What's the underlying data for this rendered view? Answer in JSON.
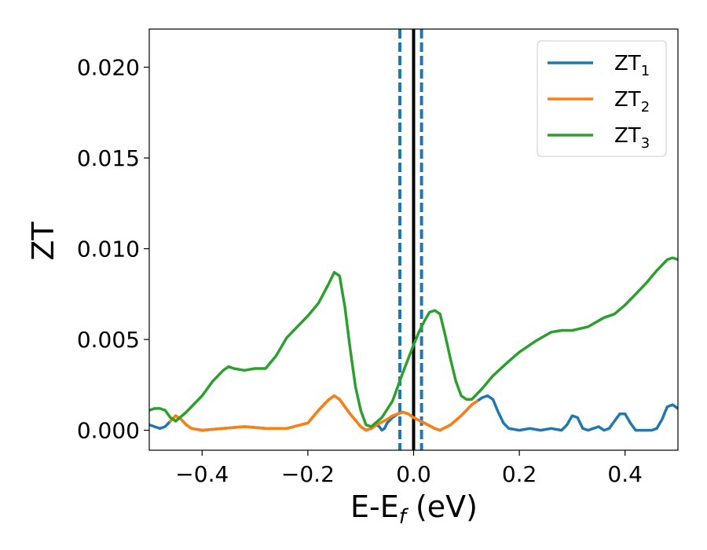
{
  "chart_data": {
    "type": "line",
    "xlabel": {
      "main": "E-E",
      "sub": "f",
      "suffix": " (eV)"
    },
    "ylabel": "ZT",
    "xlim": [
      -0.5,
      0.5
    ],
    "ylim": [
      -0.0011,
      0.0221
    ],
    "x_ticks": [
      -0.4,
      -0.2,
      0.0,
      0.2,
      0.4
    ],
    "x_tick_labels": [
      "−0.4",
      "−0.2",
      "0.0",
      "0.2",
      "0.4"
    ],
    "y_ticks": [
      0.0,
      0.005,
      0.01,
      0.015,
      0.02
    ],
    "y_tick_labels": [
      "0.000",
      "0.005",
      "0.010",
      "0.015",
      "0.020"
    ],
    "grid": false,
    "legend_position": "top-right",
    "vertical_lines": [
      {
        "x": -0.026,
        "style": "dashed",
        "color": "#1f77b4"
      },
      {
        "x": 0.0,
        "style": "solid",
        "color": "#000000"
      },
      {
        "x": 0.015,
        "style": "dashed",
        "color": "#1f77b4"
      }
    ],
    "series": [
      {
        "name": "ZT",
        "sub": "1",
        "color": "#1f77b4",
        "points": [
          [
            -0.5,
            0.0003
          ],
          [
            -0.49,
            0.0002
          ],
          [
            -0.48,
            0.0001
          ],
          [
            -0.47,
            0.0002
          ],
          [
            -0.46,
            0.0005
          ],
          [
            -0.45,
            0.0008
          ],
          [
            -0.44,
            0.0006
          ],
          [
            -0.43,
            0.0003
          ],
          [
            -0.42,
            0.0001
          ],
          [
            -0.4,
            0.0
          ],
          [
            -0.36,
            0.0001
          ],
          [
            -0.32,
            0.0002
          ],
          [
            -0.28,
            0.0001
          ],
          [
            -0.24,
            0.0001
          ],
          [
            -0.2,
            0.0004
          ],
          [
            -0.18,
            0.0011
          ],
          [
            -0.16,
            0.0017
          ],
          [
            -0.15,
            0.0019
          ],
          [
            -0.14,
            0.0017
          ],
          [
            -0.12,
            0.0009
          ],
          [
            -0.1,
            0.0002
          ],
          [
            -0.09,
            0.0
          ],
          [
            -0.08,
            0.0001
          ],
          [
            -0.07,
            0.0003
          ],
          [
            -0.065,
            0.0002
          ],
          [
            -0.06,
            0.0
          ],
          [
            -0.055,
            0.0001
          ],
          [
            -0.05,
            0.0004
          ],
          [
            -0.04,
            0.0007
          ],
          [
            -0.03,
            0.0009
          ],
          [
            -0.02,
            0.001
          ],
          [
            -0.01,
            0.0009
          ],
          [
            0.0,
            0.0007
          ],
          [
            0.02,
            0.0004
          ],
          [
            0.04,
            0.0001
          ],
          [
            0.05,
            0.0
          ],
          [
            0.07,
            0.0003
          ],
          [
            0.09,
            0.0008
          ],
          [
            0.11,
            0.0014
          ],
          [
            0.12,
            0.0016
          ],
          [
            0.13,
            0.0018
          ],
          [
            0.14,
            0.0019
          ],
          [
            0.15,
            0.0017
          ],
          [
            0.16,
            0.001
          ],
          [
            0.17,
            0.0004
          ],
          [
            0.18,
            0.0001
          ],
          [
            0.2,
            0.0
          ],
          [
            0.22,
            0.0001
          ],
          [
            0.24,
            0.0
          ],
          [
            0.26,
            0.0001
          ],
          [
            0.28,
            0.0
          ],
          [
            0.29,
            0.0003
          ],
          [
            0.3,
            0.0008
          ],
          [
            0.31,
            0.0007
          ],
          [
            0.32,
            0.0001
          ],
          [
            0.33,
            0.0
          ],
          [
            0.34,
            0.0001
          ],
          [
            0.35,
            0.0002
          ],
          [
            0.36,
            0.0
          ],
          [
            0.37,
            0.0001
          ],
          [
            0.38,
            0.0005
          ],
          [
            0.39,
            0.0009
          ],
          [
            0.4,
            0.0009
          ],
          [
            0.41,
            0.0004
          ],
          [
            0.42,
            0.0
          ],
          [
            0.45,
            0.0
          ],
          [
            0.46,
            0.0001
          ],
          [
            0.47,
            0.0006
          ],
          [
            0.48,
            0.0013
          ],
          [
            0.49,
            0.0014
          ],
          [
            0.5,
            0.0012
          ]
        ]
      },
      {
        "name": "ZT",
        "sub": "2",
        "color": "#ff7f0e",
        "points": [
          [
            -0.46,
            0.0005
          ],
          [
            -0.45,
            0.0008
          ],
          [
            -0.44,
            0.0006
          ],
          [
            -0.43,
            0.0003
          ],
          [
            -0.42,
            0.0001
          ],
          [
            -0.4,
            0.0
          ],
          [
            -0.36,
            0.0001
          ],
          [
            -0.32,
            0.0002
          ],
          [
            -0.28,
            0.0001
          ],
          [
            -0.24,
            0.0001
          ],
          [
            -0.2,
            0.0004
          ],
          [
            -0.18,
            0.0011
          ],
          [
            -0.16,
            0.0017
          ],
          [
            -0.15,
            0.0019
          ],
          [
            -0.14,
            0.0017
          ],
          [
            -0.12,
            0.0009
          ],
          [
            -0.1,
            0.0002
          ],
          [
            -0.09,
            0.0
          ],
          [
            -0.08,
            0.0001
          ],
          [
            -0.07,
            0.0003
          ],
          [
            -0.05,
            0.0006
          ],
          [
            -0.04,
            0.0008
          ],
          [
            -0.03,
            0.0009
          ],
          [
            -0.02,
            0.001
          ],
          [
            -0.01,
            0.0009
          ],
          [
            0.0,
            0.0007
          ],
          [
            0.02,
            0.0004
          ],
          [
            0.04,
            0.0001
          ],
          [
            0.05,
            0.0
          ],
          [
            0.07,
            0.0003
          ],
          [
            0.09,
            0.0008
          ],
          [
            0.11,
            0.0014
          ],
          [
            0.12,
            0.0016
          ]
        ]
      },
      {
        "name": "ZT",
        "sub": "3",
        "color": "#2ca02c",
        "points": [
          [
            -0.5,
            0.0011
          ],
          [
            -0.49,
            0.0012
          ],
          [
            -0.48,
            0.0012
          ],
          [
            -0.47,
            0.0011
          ],
          [
            -0.46,
            0.0007
          ],
          [
            -0.45,
            0.0005
          ],
          [
            -0.43,
            0.001
          ],
          [
            -0.4,
            0.0019
          ],
          [
            -0.38,
            0.0027
          ],
          [
            -0.36,
            0.0033
          ],
          [
            -0.35,
            0.0035
          ],
          [
            -0.34,
            0.0034
          ],
          [
            -0.32,
            0.0033
          ],
          [
            -0.3,
            0.0034
          ],
          [
            -0.28,
            0.0034
          ],
          [
            -0.26,
            0.0041
          ],
          [
            -0.24,
            0.0051
          ],
          [
            -0.2,
            0.0063
          ],
          [
            -0.18,
            0.007
          ],
          [
            -0.16,
            0.0081
          ],
          [
            -0.15,
            0.0087
          ],
          [
            -0.14,
            0.0085
          ],
          [
            -0.13,
            0.0068
          ],
          [
            -0.12,
            0.0045
          ],
          [
            -0.11,
            0.0024
          ],
          [
            -0.1,
            0.0011
          ],
          [
            -0.09,
            0.0003
          ],
          [
            -0.08,
            0.0002
          ],
          [
            -0.06,
            0.0007
          ],
          [
            -0.04,
            0.0016
          ],
          [
            -0.02,
            0.0032
          ],
          [
            0.0,
            0.0047
          ],
          [
            0.01,
            0.0054
          ],
          [
            0.02,
            0.006
          ],
          [
            0.03,
            0.0065
          ],
          [
            0.04,
            0.0066
          ],
          [
            0.05,
            0.0064
          ],
          [
            0.06,
            0.0052
          ],
          [
            0.07,
            0.0039
          ],
          [
            0.08,
            0.0027
          ],
          [
            0.09,
            0.0019
          ],
          [
            0.1,
            0.0017
          ],
          [
            0.11,
            0.0017
          ],
          [
            0.13,
            0.0023
          ],
          [
            0.15,
            0.003
          ],
          [
            0.18,
            0.0038
          ],
          [
            0.2,
            0.0043
          ],
          [
            0.23,
            0.0049
          ],
          [
            0.26,
            0.0054
          ],
          [
            0.28,
            0.0055
          ],
          [
            0.3,
            0.0055
          ],
          [
            0.33,
            0.0057
          ],
          [
            0.36,
            0.0062
          ],
          [
            0.38,
            0.0064
          ],
          [
            0.4,
            0.0069
          ],
          [
            0.42,
            0.0075
          ],
          [
            0.44,
            0.0081
          ],
          [
            0.46,
            0.0088
          ],
          [
            0.48,
            0.0094
          ],
          [
            0.49,
            0.0095
          ],
          [
            0.5,
            0.0094
          ]
        ]
      }
    ]
  }
}
